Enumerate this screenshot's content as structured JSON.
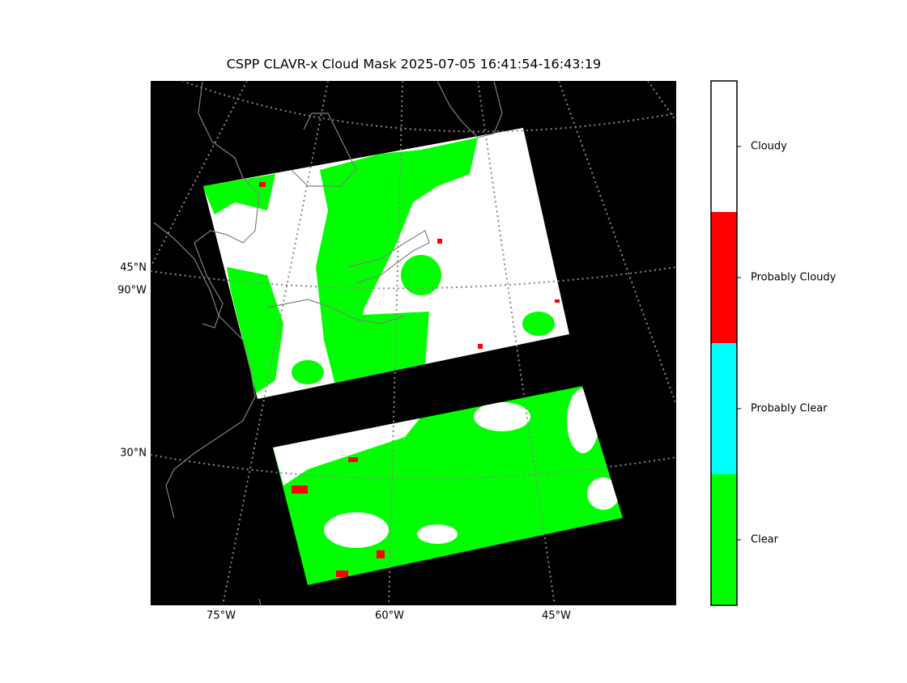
{
  "title": "CSPP CLAVR-x Cloud Mask 2025-07-05 16:41:54-16:43:19",
  "map": {
    "lat_labels": [
      "45°N",
      "30°N"
    ],
    "lon_labels": [
      "90°W",
      "75°W",
      "60°W",
      "45°W"
    ]
  },
  "colorbar": {
    "categories": [
      {
        "label": "Clear",
        "color": "#00ff00"
      },
      {
        "label": "Probably Clear",
        "color": "#00ffff"
      },
      {
        "label": "Probably Cloudy",
        "color": "#ff0000"
      },
      {
        "label": "Cloudy",
        "color": "#ffffff"
      }
    ]
  }
}
